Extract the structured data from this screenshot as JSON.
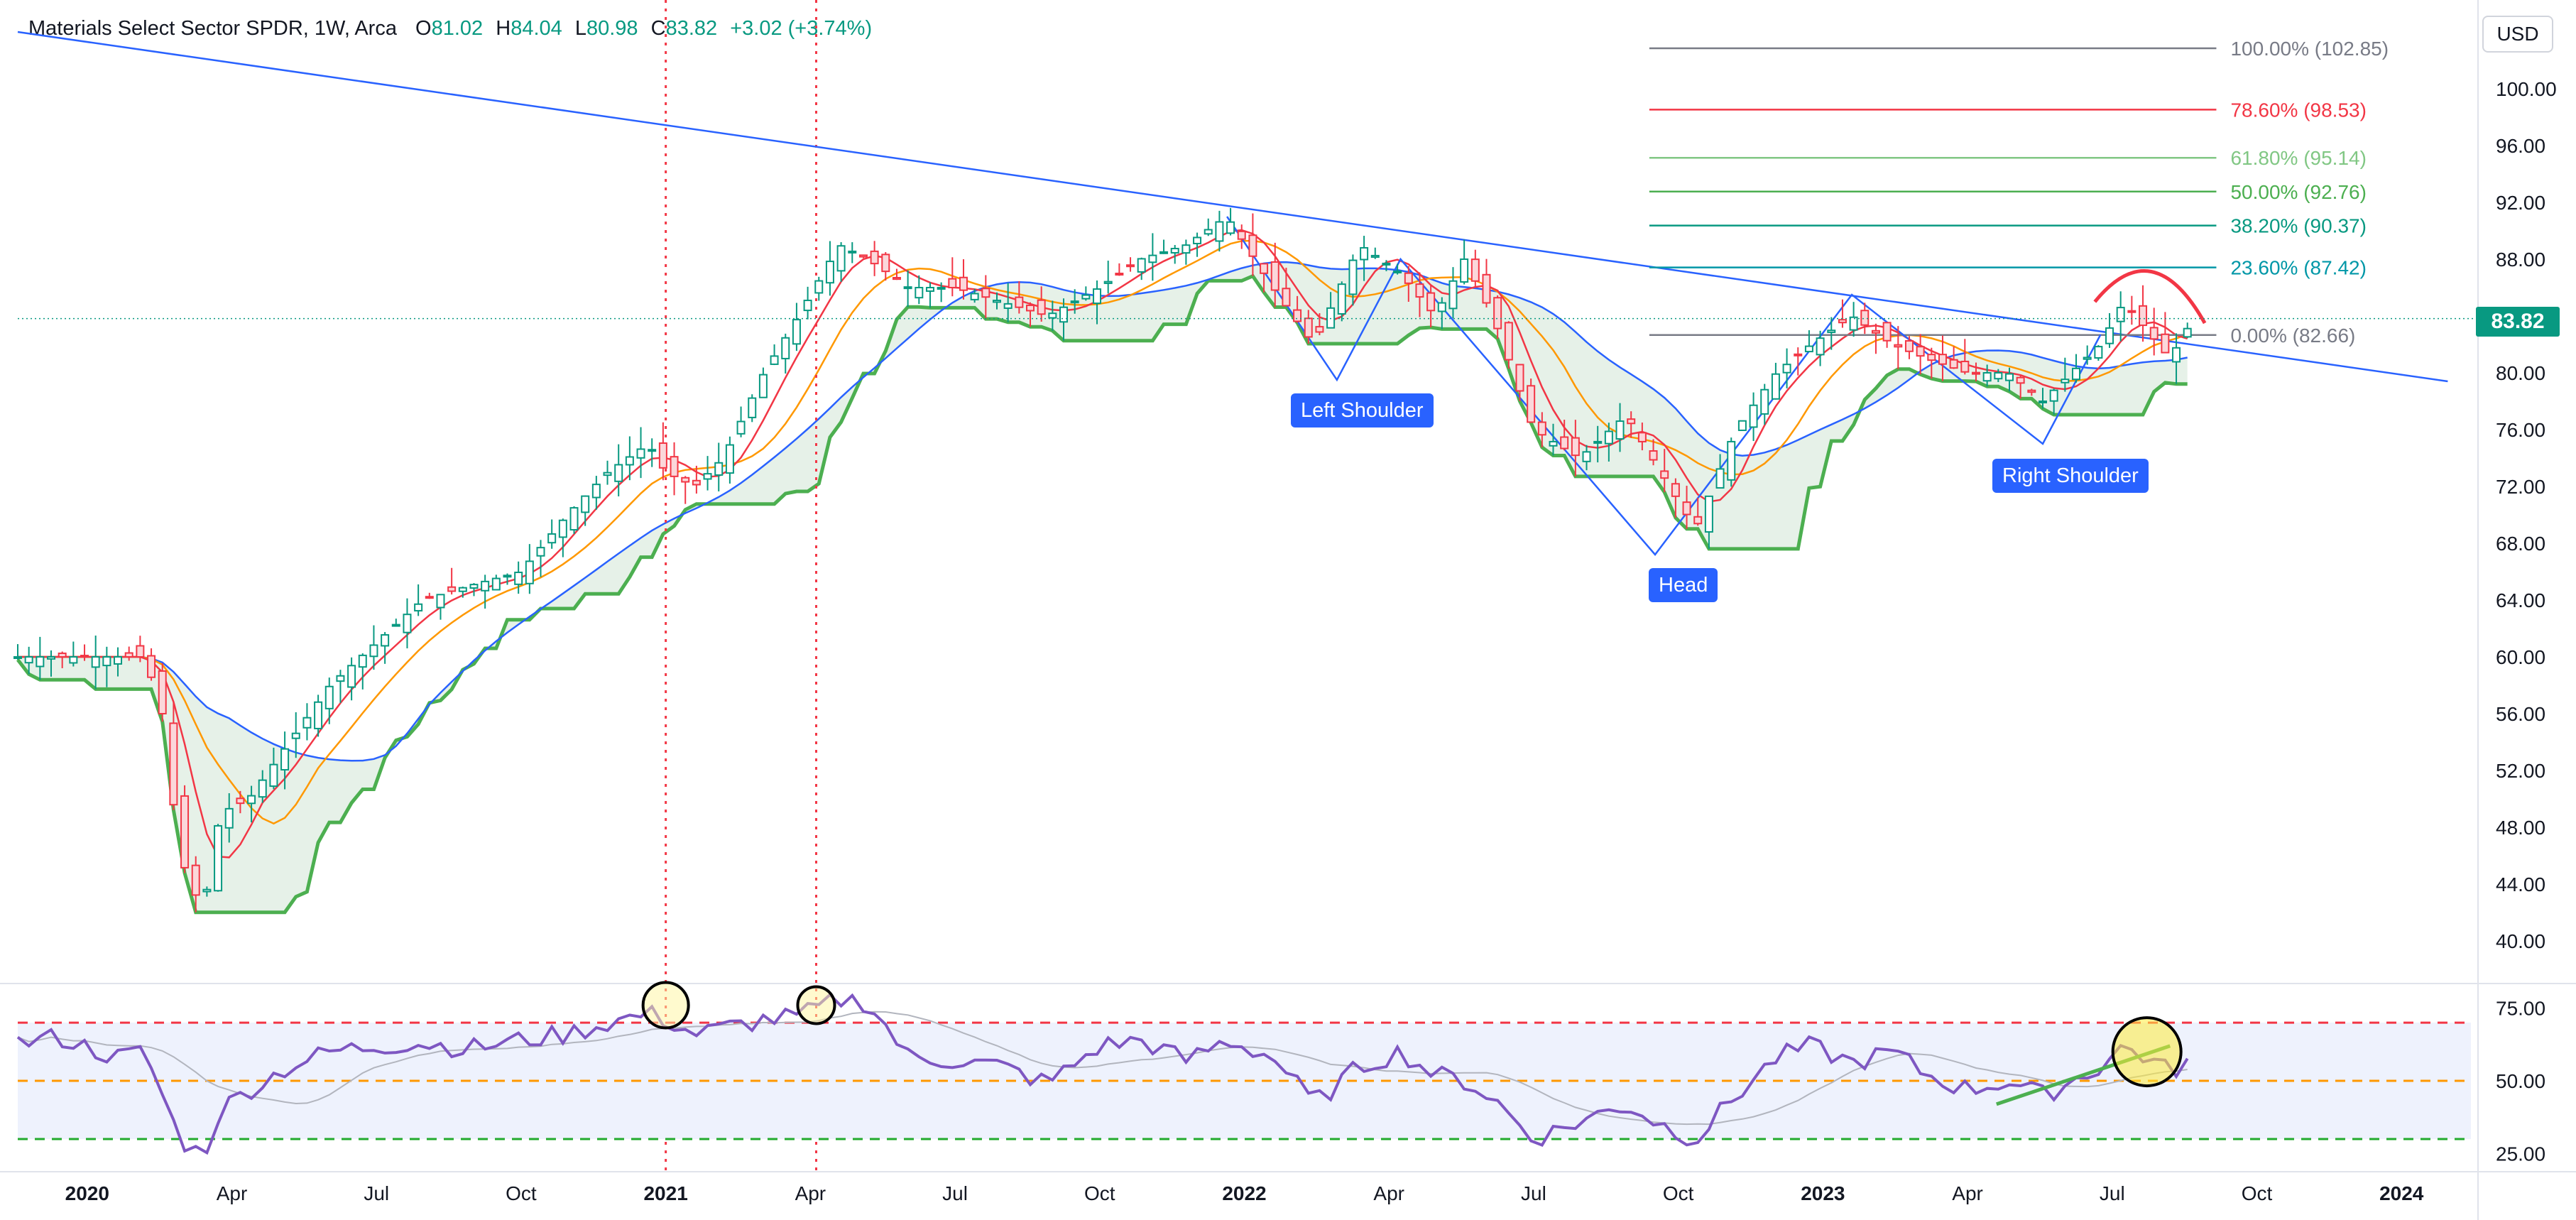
{
  "header": {
    "symbol": "Materials Select Sector SPDR, 1W, Arca",
    "open_label": "O",
    "open": "81.02",
    "high_label": "H",
    "high": "84.04",
    "low_label": "L",
    "low": "80.98",
    "close_label": "C",
    "close": "83.82",
    "change": "+3.02 (+3.74%)"
  },
  "currency_button": "USD",
  "last_price": "83.82",
  "pattern_labels": {
    "left_shoulder": "Left Shoulder",
    "head": "Head",
    "right_shoulder": "Right Shoulder"
  },
  "colors": {
    "up": "#089981",
    "down": "#f23645",
    "trendline": "#2962ff",
    "rsi": "#7e57c2",
    "band_fill": "#e3f0e6",
    "band_fill_down": "#fde3e5"
  },
  "chart_data": [
    {
      "type": "candlestick",
      "title": "Materials Select Sector SPDR, 1W, Arca",
      "x_ticks": [
        "2020",
        "Apr",
        "Jul",
        "Oct",
        "2021",
        "Apr",
        "Jul",
        "Oct",
        "2022",
        "Apr",
        "Jul",
        "Oct",
        "2023",
        "Apr",
        "Jul",
        "Oct",
        "2024"
      ],
      "x_tick_values": [
        2020.0,
        2020.25,
        2020.5,
        2020.75,
        2021.0,
        2021.25,
        2021.5,
        2021.75,
        2022.0,
        2022.25,
        2022.5,
        2022.75,
        2023.0,
        2023.25,
        2023.5,
        2023.75,
        2024.0
      ],
      "y_ticks": [
        "40.00",
        "44.00",
        "48.00",
        "52.00",
        "56.00",
        "60.00",
        "64.00",
        "68.00",
        "72.00",
        "76.00",
        "80.00",
        "84.00",
        "88.00",
        "92.00",
        "96.00",
        "100.00"
      ],
      "y_tick_values": [
        40,
        44,
        48,
        52,
        56,
        60,
        64,
        68,
        72,
        76,
        80,
        84,
        88,
        92,
        96,
        100
      ],
      "ylim": [
        37.5,
        104
      ],
      "xlim": [
        2019.88,
        2024.12
      ],
      "close_path": {
        "dates": [
          2019.88,
          2019.95,
          2020.05,
          2020.1,
          2020.13,
          2020.16,
          2020.2,
          2020.23,
          2020.28,
          2020.35,
          2020.42,
          2020.5,
          2020.58,
          2020.66,
          2020.75,
          2020.83,
          2020.9,
          2020.97,
          2021.0,
          2021.05,
          2021.1,
          2021.17,
          2021.23,
          2021.3,
          2021.35,
          2021.42,
          2021.5,
          2021.58,
          2021.66,
          2021.75,
          2021.82,
          2021.9,
          2021.97,
          2022.05,
          2022.12,
          2022.2,
          2022.27,
          2022.33,
          2022.38,
          2022.43,
          2022.5,
          2022.58,
          2022.66,
          2022.72,
          2022.78,
          2022.85,
          2022.92,
          2022.98,
          2023.05,
          2023.12,
          2023.18,
          2023.25,
          2023.32,
          2023.38,
          2023.43,
          2023.48,
          2023.52,
          2023.56,
          2023.6,
          2023.64
        ],
        "values": [
          60,
          60,
          60,
          60,
          56,
          46,
          42,
          49,
          50,
          54,
          58,
          61,
          64,
          65,
          66,
          70,
          73,
          75,
          73,
          72,
          74,
          80,
          84,
          89,
          88,
          86,
          86,
          85,
          84,
          86,
          88,
          89,
          91,
          86,
          82,
          89,
          87,
          84,
          88,
          84,
          76,
          74,
          77,
          73,
          69,
          76,
          80,
          82,
          84,
          82,
          81,
          80,
          80,
          78,
          80,
          82,
          85,
          83,
          81,
          83.82
        ]
      },
      "annotations": {
        "fib_levels": [
          {
            "label": "100.00% (102.85)",
            "value": 102.85,
            "color": "#787b86"
          },
          {
            "label": "78.60% (98.53)",
            "value": 98.53,
            "color": "#f23645"
          },
          {
            "label": "61.80% (95.14)",
            "value": 95.14,
            "color": "#81c784"
          },
          {
            "label": "50.00% (92.76)",
            "value": 92.76,
            "color": "#4caf50"
          },
          {
            "label": "38.20% (90.37)",
            "value": 90.37,
            "color": "#089981"
          },
          {
            "label": "23.60% (87.42)",
            "value": 87.42,
            "color": "#0097a7"
          },
          {
            "label": "0.00% (82.66)",
            "value": 82.66,
            "color": "#787b86"
          }
        ],
        "trendline": {
          "x": [
            2019.88,
            2024.08
          ],
          "y": [
            104,
            79.4
          ]
        },
        "vertical_markers": [
          2021.0,
          2021.26
        ],
        "head_and_shoulders": {
          "left_shoulder": {
            "x": 2022.16,
            "y": 79.5
          },
          "head": {
            "x": 2022.71,
            "y": 67.2
          },
          "right_shoulder": {
            "x": 2023.38,
            "y": 75.0
          }
        }
      }
    },
    {
      "type": "line",
      "series": [
        {
          "name": "",
          "values_description_free": true
        }
      ],
      "y_ticks": [
        "25.00",
        "50.00",
        "75.00"
      ],
      "y_tick_values": [
        25,
        50,
        75
      ],
      "ylim": [
        20,
        81
      ],
      "levels": [
        {
          "value": 70,
          "color": "#f23645"
        },
        {
          "value": 50,
          "color": "#ff9800"
        },
        {
          "value": 30,
          "color": "#22ab2d"
        }
      ],
      "dates": [
        2019.88,
        2019.95,
        2020.05,
        2020.1,
        2020.13,
        2020.16,
        2020.2,
        2020.23,
        2020.28,
        2020.35,
        2020.42,
        2020.5,
        2020.58,
        2020.66,
        2020.75,
        2020.83,
        2020.9,
        2020.97,
        2021.0,
        2021.05,
        2021.1,
        2021.17,
        2021.23,
        2021.3,
        2021.35,
        2021.42,
        2021.5,
        2021.58,
        2021.66,
        2021.75,
        2021.82,
        2021.9,
        2021.97,
        2022.05,
        2022.12,
        2022.2,
        2022.27,
        2022.33,
        2022.38,
        2022.43,
        2022.5,
        2022.58,
        2022.66,
        2022.72,
        2022.78,
        2022.85,
        2022.92,
        2022.98,
        2023.05,
        2023.12,
        2023.18,
        2023.25,
        2023.32,
        2023.38,
        2023.43,
        2023.48,
        2023.52,
        2023.56,
        2023.6,
        2023.64
      ],
      "values": [
        63,
        65,
        58,
        60,
        45,
        30,
        24,
        40,
        47,
        55,
        60,
        62,
        63,
        61,
        64,
        66,
        70,
        73,
        71,
        66,
        68,
        71,
        72,
        78,
        77,
        58,
        57,
        55,
        49,
        62,
        64,
        57,
        64,
        58,
        42,
        55,
        60,
        52,
        50,
        44,
        30,
        36,
        42,
        35,
        30,
        45,
        58,
        62,
        56,
        60,
        52,
        47,
        50,
        45,
        50,
        55,
        62,
        58,
        53,
        58
      ],
      "divergence_line": {
        "x": [
          2023.3,
          2023.6
        ],
        "y": [
          42,
          62
        ]
      },
      "highlight_circles": [
        2021.0,
        2021.26,
        2023.56
      ]
    }
  ]
}
